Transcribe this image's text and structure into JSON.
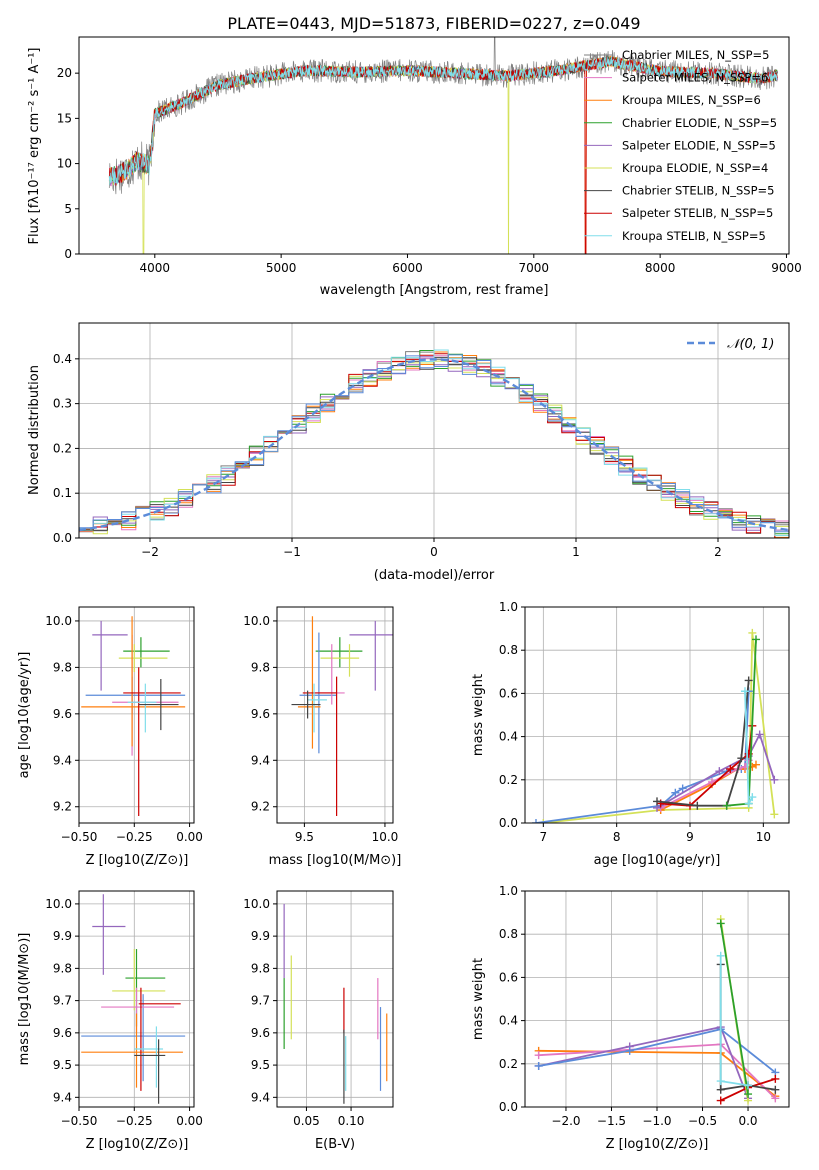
{
  "figure": {
    "title": "PLATE=0443, MJD=51873, FIBERID=0227, z=0.049"
  },
  "chart_data": [
    {
      "id": "spectrum",
      "type": "line",
      "xlabel": "wavelength [Angstrom, rest frame]",
      "ylabel": "Flux [fλ10⁻¹⁷ erg cm⁻² s⁻¹ A⁻¹]",
      "xlim": [
        3400,
        9020
      ],
      "ylim": [
        0,
        24
      ],
      "xticks": [
        4000,
        5000,
        6000,
        7000,
        8000,
        9000
      ],
      "yticks": [
        0,
        5,
        10,
        15,
        20
      ],
      "legend_position": "upper-right",
      "continuum": [
        [
          3640,
          8.5
        ],
        [
          3700,
          8.7
        ],
        [
          3800,
          9.5
        ],
        [
          3860,
          10.3
        ],
        [
          3960,
          9.8
        ],
        [
          4000,
          15.5
        ],
        [
          4200,
          16.6
        ],
        [
          4500,
          18.7
        ],
        [
          4800,
          19.5
        ],
        [
          5200,
          20.3
        ],
        [
          5600,
          20.1
        ],
        [
          6000,
          20.3
        ],
        [
          6400,
          20.0
        ],
        [
          6800,
          19.7
        ],
        [
          7200,
          20.3
        ],
        [
          7600,
          21.3
        ],
        [
          8000,
          20.2
        ],
        [
          8400,
          20.0
        ],
        [
          8800,
          19.4
        ],
        [
          8930,
          19.8
        ]
      ],
      "series": [
        {
          "name": "Chabrier MILES, N_SSP=5",
          "color": "#7f7f7f",
          "dropouts": []
        },
        {
          "name": "Salpeter MILES, N_SSP=6",
          "color": "#e377c2",
          "dropouts": []
        },
        {
          "name": "Kroupa MILES, N_SSP=6",
          "color": "#ff7f0e",
          "dropouts": [
            7410
          ]
        },
        {
          "name": "Chabrier ELODIE, N_SSP=5",
          "color": "#2ca02c",
          "dropouts": []
        },
        {
          "name": "Salpeter ELODIE, N_SSP=5",
          "color": "#9467bd",
          "dropouts": []
        },
        {
          "name": "Kroupa ELODIE, N_SSP=4",
          "color": "#d4e157",
          "dropouts": [
            3910,
            6800
          ]
        },
        {
          "name": "Chabrier STELIB, N_SSP=5",
          "color": "#444444",
          "dropouts": []
        },
        {
          "name": "Salpeter STELIB, N_SSP=5",
          "color": "#cc0000",
          "dropouts": [
            7410
          ]
        },
        {
          "name": "Kroupa STELIB, N_SSP=5",
          "color": "#80deea",
          "dropouts": []
        }
      ]
    },
    {
      "id": "residuals",
      "type": "step",
      "xlabel": "(data-model)/error",
      "ylabel": "Normed distribution",
      "xlim": [
        -2.5,
        2.5
      ],
      "ylim": [
        0,
        0.48
      ],
      "xticks": [
        -2,
        -1,
        0,
        1,
        2
      ],
      "yticks": [
        0.0,
        0.1,
        0.2,
        0.3,
        0.4
      ],
      "grid": true,
      "bin_width": 0.1,
      "reference": {
        "name": "𝒩(0, 1)",
        "color": "#5b8bd9",
        "style": "dashed",
        "mean": 0,
        "sigma": 1
      },
      "series_colors": [
        "#7f7f7f",
        "#e377c2",
        "#ff7f0e",
        "#2ca02c",
        "#9467bd",
        "#d4e157",
        "#444444",
        "#cc0000",
        "#80deea",
        "#5b8bd9"
      ]
    },
    {
      "id": "age-vs-Z",
      "type": "errorbar",
      "xlabel": "Z [log10(Z/Z⊙)]",
      "ylabel": "age  [log10(age/yr)]",
      "xlim": [
        -0.5,
        0.02
      ],
      "ylim": [
        9.13,
        10.06
      ],
      "xticks": [
        -0.5,
        -0.25,
        0.0
      ],
      "yticks": [
        9.2,
        9.4,
        9.6,
        9.8,
        10.0
      ],
      "grid": true,
      "points": [
        {
          "color": "#9467bd",
          "x": [
            -0.44,
            -0.4,
            -0.28
          ],
          "y": [
            9.7,
            9.94,
            10.0
          ]
        },
        {
          "color": "#2ca02c",
          "x": [
            -0.3,
            -0.22,
            -0.09
          ],
          "y": [
            9.8,
            9.87,
            9.93
          ]
        },
        {
          "color": "#d4e157",
          "x": [
            -0.32,
            -0.25,
            -0.1
          ],
          "y": [
            9.78,
            9.84,
            9.9
          ]
        },
        {
          "color": "#5b8bd9",
          "x": [
            -0.47,
            -0.26,
            -0.02
          ],
          "y": [
            9.6,
            9.68,
            9.76
          ]
        },
        {
          "color": "#e377c2",
          "x": [
            -0.35,
            -0.26,
            -0.05
          ],
          "y": [
            9.42,
            9.65,
            9.94
          ]
        },
        {
          "color": "#ff7f0e",
          "x": [
            -0.49,
            -0.26,
            -0.02
          ],
          "y": [
            9.46,
            9.63,
            10.02
          ]
        },
        {
          "color": "#cc0000",
          "x": [
            -0.3,
            -0.23,
            -0.04
          ],
          "y": [
            9.16,
            9.69,
            9.8
          ]
        },
        {
          "color": "#80deea",
          "x": [
            -0.28,
            -0.2,
            -0.15
          ],
          "y": [
            9.52,
            9.65,
            9.73
          ]
        },
        {
          "color": "#444444",
          "x": [
            -0.23,
            -0.13,
            -0.05
          ],
          "y": [
            9.53,
            9.64,
            9.75
          ]
        }
      ]
    },
    {
      "id": "age-vs-mass",
      "type": "errorbar",
      "xlabel": "mass [log10(M/M⊙)]",
      "ylabel": "",
      "xlim": [
        9.33,
        10.05
      ],
      "ylim": [
        9.13,
        10.06
      ],
      "xticks": [
        9.5,
        10.0
      ],
      "yticks": [
        9.2,
        9.4,
        9.6,
        9.8,
        10.0
      ],
      "grid": true,
      "points": [
        {
          "color": "#9467bd",
          "x": [
            9.78,
            9.94,
            10.05
          ],
          "y": [
            9.7,
            9.94,
            10.0
          ]
        },
        {
          "color": "#2ca02c",
          "x": [
            9.57,
            9.72,
            9.86
          ],
          "y": [
            9.8,
            9.87,
            9.93
          ]
        },
        {
          "color": "#d4e157",
          "x": [
            9.6,
            9.78,
            9.84
          ],
          "y": [
            9.76,
            9.84,
            9.9
          ]
        },
        {
          "color": "#5b8bd9",
          "x": [
            9.47,
            9.59,
            9.7
          ],
          "y": [
            9.43,
            9.68,
            9.95
          ]
        },
        {
          "color": "#e377c2",
          "x": [
            9.57,
            9.67,
            9.75
          ],
          "y": [
            9.64,
            9.69,
            9.9
          ]
        },
        {
          "color": "#ff7f0e",
          "x": [
            9.46,
            9.55,
            9.6
          ],
          "y": [
            9.45,
            9.63,
            10.02
          ]
        },
        {
          "color": "#cc0000",
          "x": [
            9.49,
            9.7,
            9.7
          ],
          "y": [
            9.16,
            9.69,
            9.76
          ]
        },
        {
          "color": "#80deea",
          "x": [
            9.52,
            9.56,
            9.64
          ],
          "y": [
            9.52,
            9.66,
            9.73
          ]
        },
        {
          "color": "#444444",
          "x": [
            9.42,
            9.52,
            9.6
          ],
          "y": [
            9.58,
            9.64,
            9.7
          ]
        }
      ]
    },
    {
      "id": "weight-vs-age",
      "type": "line",
      "xlabel": "age  [log10(age/yr)]",
      "ylabel": "mass weight",
      "xlim": [
        6.75,
        10.35
      ],
      "ylim": [
        0,
        1
      ],
      "xticks": [
        7,
        8,
        9,
        10
      ],
      "yticks": [
        0.0,
        0.2,
        0.4,
        0.6,
        0.8,
        1.0
      ],
      "grid": true,
      "series": [
        {
          "color": "#d4e157",
          "x": [
            7.0,
            8.6,
            9.8,
            9.85,
            10.15
          ],
          "y": [
            0.0,
            0.06,
            0.07,
            0.88,
            0.04
          ]
        },
        {
          "color": "#5b8bd9",
          "x": [
            6.9,
            8.6,
            8.8,
            8.9,
            9.5,
            9.7,
            9.75,
            9.8
          ],
          "y": [
            0.0,
            0.08,
            0.14,
            0.16,
            0.24,
            0.25,
            0.26,
            0.61
          ]
        },
        {
          "color": "#ff7f0e",
          "x": [
            8.6,
            9.3,
            9.65,
            9.75,
            9.85,
            9.9
          ],
          "y": [
            0.06,
            0.18,
            0.25,
            0.25,
            0.26,
            0.27
          ]
        },
        {
          "color": "#e377c2",
          "x": [
            8.6,
            9.3,
            9.65,
            9.75,
            9.8
          ],
          "y": [
            0.07,
            0.19,
            0.25,
            0.26,
            0.29
          ]
        },
        {
          "color": "#9467bd",
          "x": [
            8.55,
            9.4,
            9.8,
            9.95,
            10.15
          ],
          "y": [
            0.07,
            0.24,
            0.31,
            0.41,
            0.2
          ]
        },
        {
          "color": "#cc0000",
          "x": [
            8.6,
            9.0,
            9.55,
            9.8,
            9.85
          ],
          "y": [
            0.09,
            0.08,
            0.25,
            0.32,
            0.45
          ]
        },
        {
          "color": "#444444",
          "x": [
            8.55,
            9.1,
            9.5,
            9.7,
            9.8
          ],
          "y": [
            0.1,
            0.08,
            0.08,
            0.3,
            0.66
          ]
        },
        {
          "color": "#2ca02c",
          "x": [
            9.5,
            9.8,
            9.9
          ],
          "y": [
            0.08,
            0.09,
            0.85
          ]
        },
        {
          "color": "#80deea",
          "x": [
            9.75,
            9.8,
            9.85
          ],
          "y": [
            0.61,
            0.09,
            0.12
          ]
        }
      ]
    },
    {
      "id": "mass-vs-Z",
      "type": "errorbar",
      "xlabel": "Z [log10(Z/Z⊙)]",
      "ylabel": "mass [log10(M/M⊙)]",
      "xlim": [
        -0.5,
        0.02
      ],
      "ylim": [
        9.37,
        10.04
      ],
      "xticks": [
        -0.5,
        -0.25,
        0.0
      ],
      "yticks": [
        9.4,
        9.5,
        9.6,
        9.7,
        9.8,
        9.9,
        10.0
      ],
      "grid": true,
      "points": [
        {
          "color": "#9467bd",
          "x": [
            -0.44,
            -0.39,
            -0.29
          ],
          "y": [
            9.78,
            9.93,
            10.03
          ]
        },
        {
          "color": "#2ca02c",
          "x": [
            -0.29,
            -0.24,
            -0.11
          ],
          "y": [
            9.62,
            9.77,
            9.86
          ]
        },
        {
          "color": "#d4e157",
          "x": [
            -0.35,
            -0.25,
            -0.11
          ],
          "y": [
            9.67,
            9.73,
            9.86
          ]
        },
        {
          "color": "#5b8bd9",
          "x": [
            -0.49,
            -0.21,
            -0.02
          ],
          "y": [
            9.45,
            9.59,
            9.72
          ]
        },
        {
          "color": "#e377c2",
          "x": [
            -0.4,
            -0.24,
            -0.07
          ],
          "y": [
            9.6,
            9.68,
            9.74
          ]
        },
        {
          "color": "#ff7f0e",
          "x": [
            -0.49,
            -0.24,
            -0.03
          ],
          "y": [
            9.43,
            9.54,
            9.66
          ]
        },
        {
          "color": "#cc0000",
          "x": [
            -0.23,
            -0.22,
            -0.04
          ],
          "y": [
            9.42,
            9.69,
            9.74
          ]
        },
        {
          "color": "#80deea",
          "x": [
            -0.25,
            -0.15,
            -0.12
          ],
          "y": [
            9.43,
            9.55,
            9.62
          ]
        },
        {
          "color": "#444444",
          "x": [
            -0.25,
            -0.14,
            -0.11
          ],
          "y": [
            9.38,
            9.53,
            9.58
          ]
        }
      ]
    },
    {
      "id": "mass-vs-ebv",
      "type": "errorbar",
      "xlabel": "E(B-V)",
      "ylabel": "",
      "xlim": [
        0.017,
        0.147
      ],
      "ylim": [
        9.37,
        10.04
      ],
      "xticks": [
        0.05,
        0.1
      ],
      "yticks": [
        9.4,
        9.5,
        9.6,
        9.7,
        9.8,
        9.9,
        10.0
      ],
      "grid": true,
      "points": [
        {
          "color": "#9467bd",
          "x": 0.025,
          "y": [
            9.77,
            9.93,
            10.0
          ]
        },
        {
          "color": "#2ca02c",
          "x": 0.025,
          "y": [
            9.55,
            9.7,
            9.77
          ]
        },
        {
          "color": "#d4e157",
          "x": 0.033,
          "y": [
            9.58,
            9.7,
            9.84
          ]
        },
        {
          "color": "#cc0000",
          "x": 0.092,
          "y": [
            9.6,
            9.68,
            9.74
          ]
        },
        {
          "color": "#444444",
          "x": 0.092,
          "y": [
            9.38,
            9.48,
            9.61
          ]
        },
        {
          "color": "#80deea",
          "x": 0.094,
          "y": [
            9.42,
            9.5,
            9.59
          ]
        },
        {
          "color": "#e377c2",
          "x": 0.13,
          "y": [
            9.58,
            9.68,
            9.77
          ]
        },
        {
          "color": "#5b8bd9",
          "x": 0.133,
          "y": [
            9.42,
            9.55,
            9.68
          ]
        },
        {
          "color": "#ff7f0e",
          "x": 0.14,
          "y": [
            9.45,
            9.55,
            9.66
          ]
        }
      ]
    },
    {
      "id": "weight-vs-Z",
      "type": "line",
      "xlabel": "Z [log10(Z/Z⊙)]",
      "ylabel": "mass weight",
      "xlim": [
        -2.45,
        0.45
      ],
      "ylim": [
        0,
        1
      ],
      "xticks": [
        -2.0,
        -1.5,
        -1.0,
        -0.5,
        0.0
      ],
      "yticks": [
        0.0,
        0.2,
        0.4,
        0.6,
        0.8,
        1.0
      ],
      "grid": true,
      "series": [
        {
          "color": "#ff7f0e",
          "x": [
            -2.3,
            -0.3,
            0.3
          ],
          "y": [
            0.26,
            0.25,
            0.05
          ]
        },
        {
          "color": "#e377c2",
          "x": [
            -2.3,
            -0.3,
            0.3
          ],
          "y": [
            0.24,
            0.29,
            0.04
          ]
        },
        {
          "color": "#9467bd",
          "x": [
            -2.3,
            -1.3,
            -0.3,
            0.0
          ],
          "y": [
            0.19,
            0.28,
            0.37,
            0.04
          ]
        },
        {
          "color": "#5b8bd9",
          "x": [
            -2.3,
            -1.3,
            -0.3,
            0.3
          ],
          "y": [
            0.19,
            0.26,
            0.36,
            0.16
          ]
        },
        {
          "color": "#cc0000",
          "x": [
            -0.3,
            0.0,
            0.3
          ],
          "y": [
            0.03,
            0.09,
            0.13
          ]
        },
        {
          "color": "#444444",
          "x": [
            -0.3,
            -0.3,
            0.0,
            0.3
          ],
          "y": [
            0.66,
            0.08,
            0.1,
            0.08
          ]
        },
        {
          "color": "#d4e157",
          "x": [
            -0.3,
            0.0
          ],
          "y": [
            0.87,
            0.03
          ]
        },
        {
          "color": "#2ca02c",
          "x": [
            -0.3,
            0.0
          ],
          "y": [
            0.85,
            0.06
          ]
        },
        {
          "color": "#80deea",
          "x": [
            -0.3,
            -0.3,
            0.0
          ],
          "y": [
            0.7,
            0.12,
            0.1
          ]
        }
      ]
    }
  ]
}
